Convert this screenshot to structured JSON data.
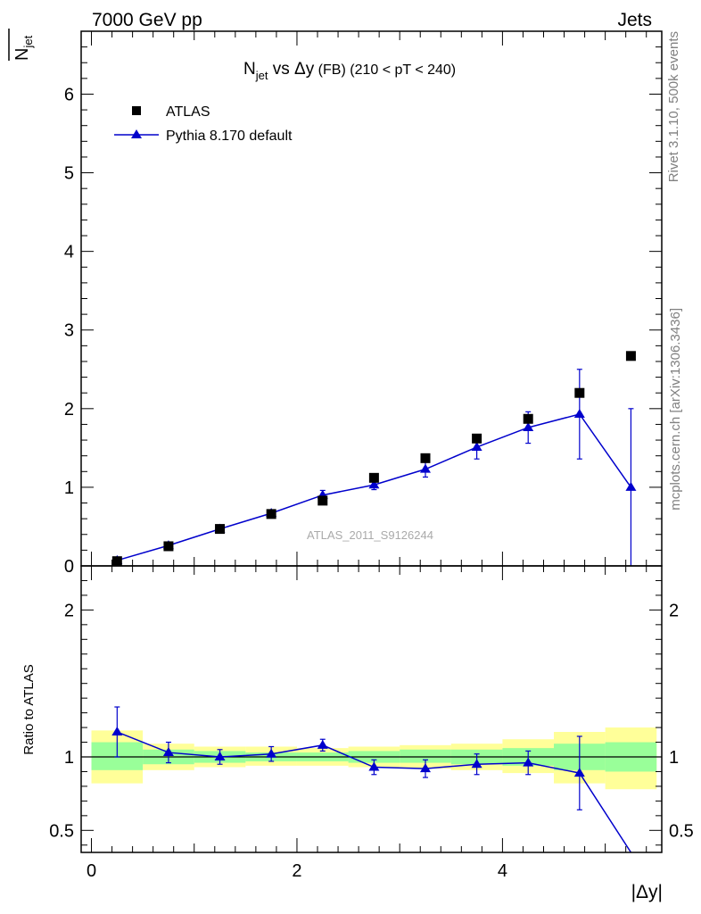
{
  "header": {
    "left": "7000 GeV pp",
    "right": "Jets"
  },
  "side": {
    "rivet": "Rivet 3.1.10,  500k events",
    "mcplots": "mcplots.cern.ch [arXiv:1306.3436]"
  },
  "watermark": "ATLAS_2011_S9126244",
  "chart_data": [
    {
      "type": "scatter",
      "title": {
        "main": "N",
        "main_sub": "jet",
        "vs": " vs ",
        "var": "Δy",
        "qualifier": " (FB) ",
        "range": "(210 < pT < 240)"
      },
      "ylabel": {
        "main": "N",
        "sub": "jet"
      },
      "xlim": [
        -0.1,
        5.55
      ],
      "ylim": [
        0,
        6.8
      ],
      "yticks": [
        0,
        1,
        2,
        3,
        4,
        5,
        6
      ],
      "legend_position": "top-left",
      "series": [
        {
          "name": "ATLAS",
          "marker": "square",
          "color": "#000000",
          "x": [
            0.25,
            0.75,
            1.25,
            1.75,
            2.25,
            2.75,
            3.25,
            3.75,
            4.25,
            4.75,
            5.25
          ],
          "y": [
            0.06,
            0.25,
            0.47,
            0.66,
            0.83,
            1.12,
            1.37,
            1.62,
            1.87,
            2.2,
            2.67
          ]
        },
        {
          "name": "Pythia 8.170 default",
          "marker": "triangle",
          "color": "#0000cc",
          "x": [
            0.25,
            0.75,
            1.25,
            1.75,
            2.25,
            2.75,
            3.25,
            3.75,
            4.25,
            4.75,
            5.25
          ],
          "y": [
            0.07,
            0.26,
            0.47,
            0.67,
            0.9,
            1.03,
            1.23,
            1.51,
            1.76,
            1.93,
            1.0
          ],
          "yerr": [
            0.01,
            0.02,
            0.02,
            0.03,
            0.06,
            0.06,
            0.1,
            0.15,
            0.2,
            0.57,
            1.0
          ]
        }
      ]
    },
    {
      "type": "line",
      "ylabel": "Ratio to ATLAS",
      "xlabel": "|Δy|",
      "xlim": [
        -0.1,
        5.55
      ],
      "xticks": [
        0,
        2,
        4
      ],
      "ylim": [
        0.35,
        2.3
      ],
      "yticks": [
        0.5,
        1,
        2
      ],
      "reference_line": 1.0,
      "bands": {
        "x_edges": [
          0.0,
          0.5,
          1.0,
          1.5,
          2.0,
          2.5,
          3.0,
          3.5,
          4.0,
          4.5,
          5.0,
          5.5
        ],
        "inner_color": "#99ff99",
        "outer_color": "#ffff99",
        "inner": [
          [
            0.91,
            1.1
          ],
          [
            0.95,
            1.05
          ],
          [
            0.96,
            1.04
          ],
          [
            0.97,
            1.03
          ],
          [
            0.97,
            1.03
          ],
          [
            0.96,
            1.04
          ],
          [
            0.96,
            1.05
          ],
          [
            0.95,
            1.05
          ],
          [
            0.94,
            1.06
          ],
          [
            0.91,
            1.09
          ],
          [
            0.9,
            1.1
          ]
        ],
        "outer": [
          [
            0.82,
            1.18
          ],
          [
            0.91,
            1.09
          ],
          [
            0.93,
            1.07
          ],
          [
            0.94,
            1.07
          ],
          [
            0.94,
            1.06
          ],
          [
            0.93,
            1.07
          ],
          [
            0.92,
            1.08
          ],
          [
            0.91,
            1.09
          ],
          [
            0.89,
            1.12
          ],
          [
            0.82,
            1.17
          ],
          [
            0.78,
            1.2
          ]
        ]
      },
      "series": [
        {
          "name": "Pythia 8.170 default",
          "color": "#0000cc",
          "x": [
            0.25,
            0.75,
            1.25,
            1.75,
            2.25,
            2.75,
            3.25,
            3.75,
            4.25,
            4.75,
            5.25
          ],
          "y": [
            1.17,
            1.03,
            1.0,
            1.02,
            1.08,
            0.93,
            0.92,
            0.95,
            0.96,
            0.89,
            0.35
          ],
          "yerr": [
            0.17,
            0.07,
            0.05,
            0.05,
            0.04,
            0.05,
            0.06,
            0.07,
            0.08,
            0.25,
            0.0
          ]
        }
      ]
    }
  ]
}
